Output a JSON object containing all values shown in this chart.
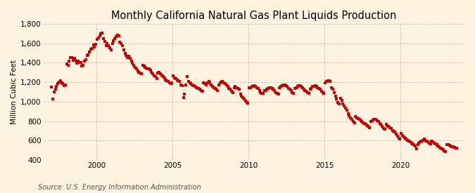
{
  "title": "Monthly California Natural Gas Plant Liquids Production",
  "ylabel": "Million Cubic Feet",
  "source": "Source: U.S. Energy Information Administration",
  "ylim": [
    400,
    1800
  ],
  "yticks": [
    400,
    600,
    800,
    1000,
    1200,
    1400,
    1600,
    1800
  ],
  "xlim_start": 1996.5,
  "xlim_end": 2024.2,
  "xticks": [
    2000,
    2005,
    2010,
    2015,
    2020
  ],
  "background_color": "#FDF3E0",
  "plot_bg_color": "#FDF3E0",
  "marker_color": "#CC0000",
  "marker_size": 7,
  "title_fontsize": 10.5,
  "label_fontsize": 7.5,
  "tick_fontsize": 7.5,
  "source_fontsize": 7,
  "grid_color": "#AAAAAA",
  "grid_style": "--",
  "grid_alpha": 0.6,
  "data_years": [
    1997,
    1997,
    1997,
    1997,
    1997,
    1997,
    1997,
    1997,
    1997,
    1997,
    1997,
    1997,
    1998,
    1998,
    1998,
    1998,
    1998,
    1998,
    1998,
    1998,
    1998,
    1998,
    1998,
    1998,
    1999,
    1999,
    1999,
    1999,
    1999,
    1999,
    1999,
    1999,
    1999,
    1999,
    1999,
    1999,
    2000,
    2000,
    2000,
    2000,
    2000,
    2000,
    2000,
    2000,
    2000,
    2000,
    2000,
    2000,
    2001,
    2001,
    2001,
    2001,
    2001,
    2001,
    2001,
    2001,
    2001,
    2001,
    2001,
    2001,
    2002,
    2002,
    2002,
    2002,
    2002,
    2002,
    2002,
    2002,
    2002,
    2002,
    2002,
    2002,
    2003,
    2003,
    2003,
    2003,
    2003,
    2003,
    2003,
    2003,
    2003,
    2003,
    2003,
    2003,
    2004,
    2004,
    2004,
    2004,
    2004,
    2004,
    2004,
    2004,
    2004,
    2004,
    2004,
    2004,
    2005,
    2005,
    2005,
    2005,
    2005,
    2005,
    2005,
    2005,
    2005,
    2005,
    2005,
    2005,
    2006,
    2006,
    2006,
    2006,
    2006,
    2006,
    2006,
    2006,
    2006,
    2006,
    2006,
    2006,
    2007,
    2007,
    2007,
    2007,
    2007,
    2007,
    2007,
    2007,
    2007,
    2007,
    2007,
    2007,
    2008,
    2008,
    2008,
    2008,
    2008,
    2008,
    2008,
    2008,
    2008,
    2008,
    2008,
    2008,
    2009,
    2009,
    2009,
    2009,
    2009,
    2009,
    2009,
    2009,
    2009,
    2009,
    2009,
    2009,
    2010,
    2010,
    2010,
    2010,
    2010,
    2010,
    2010,
    2010,
    2010,
    2010,
    2010,
    2010,
    2011,
    2011,
    2011,
    2011,
    2011,
    2011,
    2011,
    2011,
    2011,
    2011,
    2011,
    2011,
    2012,
    2012,
    2012,
    2012,
    2012,
    2012,
    2012,
    2012,
    2012,
    2012,
    2012,
    2012,
    2013,
    2013,
    2013,
    2013,
    2013,
    2013,
    2013,
    2013,
    2013,
    2013,
    2013,
    2013,
    2014,
    2014,
    2014,
    2014,
    2014,
    2014,
    2014,
    2014,
    2014,
    2014,
    2014,
    2014,
    2015,
    2015,
    2015,
    2015,
    2015,
    2015,
    2015,
    2015,
    2015,
    2015,
    2015,
    2015,
    2016,
    2016,
    2016,
    2016,
    2016,
    2016,
    2016,
    2016,
    2016,
    2016,
    2016,
    2016,
    2017,
    2017,
    2017,
    2017,
    2017,
    2017,
    2017,
    2017,
    2017,
    2017,
    2017,
    2017,
    2018,
    2018,
    2018,
    2018,
    2018,
    2018,
    2018,
    2018,
    2018,
    2018,
    2018,
    2018,
    2019,
    2019,
    2019,
    2019,
    2019,
    2019,
    2019,
    2019,
    2019,
    2019,
    2019,
    2019,
    2020,
    2020,
    2020,
    2020,
    2020,
    2020,
    2020,
    2020,
    2020,
    2020,
    2020,
    2020,
    2021,
    2021,
    2021,
    2021,
    2021,
    2021,
    2021,
    2021,
    2021,
    2021,
    2021,
    2021,
    2022,
    2022,
    2022,
    2022,
    2022,
    2022,
    2022,
    2022,
    2022,
    2022,
    2022,
    2022,
    2023,
    2023,
    2023,
    2023,
    2023,
    2023,
    2023,
    2023,
    2023
  ],
  "data_months": [
    1,
    2,
    3,
    4,
    5,
    6,
    7,
    8,
    9,
    10,
    11,
    12,
    1,
    2,
    3,
    4,
    5,
    6,
    7,
    8,
    9,
    10,
    11,
    12,
    1,
    2,
    3,
    4,
    5,
    6,
    7,
    8,
    9,
    10,
    11,
    12,
    1,
    2,
    3,
    4,
    5,
    6,
    7,
    8,
    9,
    10,
    11,
    12,
    1,
    2,
    3,
    4,
    5,
    6,
    7,
    8,
    9,
    10,
    11,
    12,
    1,
    2,
    3,
    4,
    5,
    6,
    7,
    8,
    9,
    10,
    11,
    12,
    1,
    2,
    3,
    4,
    5,
    6,
    7,
    8,
    9,
    10,
    11,
    12,
    1,
    2,
    3,
    4,
    5,
    6,
    7,
    8,
    9,
    10,
    11,
    12,
    1,
    2,
    3,
    4,
    5,
    6,
    7,
    8,
    9,
    10,
    11,
    12,
    1,
    2,
    3,
    4,
    5,
    6,
    7,
    8,
    9,
    10,
    11,
    12,
    1,
    2,
    3,
    4,
    5,
    6,
    7,
    8,
    9,
    10,
    11,
    12,
    1,
    2,
    3,
    4,
    5,
    6,
    7,
    8,
    9,
    10,
    11,
    12,
    1,
    2,
    3,
    4,
    5,
    6,
    7,
    8,
    9,
    10,
    11,
    12,
    1,
    2,
    3,
    4,
    5,
    6,
    7,
    8,
    9,
    10,
    11,
    12,
    1,
    2,
    3,
    4,
    5,
    6,
    7,
    8,
    9,
    10,
    11,
    12,
    1,
    2,
    3,
    4,
    5,
    6,
    7,
    8,
    9,
    10,
    11,
    12,
    1,
    2,
    3,
    4,
    5,
    6,
    7,
    8,
    9,
    10,
    11,
    12,
    1,
    2,
    3,
    4,
    5,
    6,
    7,
    8,
    9,
    10,
    11,
    12,
    1,
    2,
    3,
    4,
    5,
    6,
    7,
    8,
    9,
    10,
    11,
    12,
    1,
    2,
    3,
    4,
    5,
    6,
    7,
    8,
    9,
    10,
    11,
    12,
    1,
    2,
    3,
    4,
    5,
    6,
    7,
    8,
    9,
    10,
    11,
    12,
    1,
    2,
    3,
    4,
    5,
    6,
    7,
    8,
    9,
    10,
    11,
    12,
    1,
    2,
    3,
    4,
    5,
    6,
    7,
    8,
    9,
    10,
    11,
    12,
    1,
    2,
    3,
    4,
    5,
    6,
    7,
    8,
    9,
    10,
    11,
    12,
    1,
    2,
    3,
    4,
    5,
    6,
    7,
    8,
    9,
    10,
    11,
    12,
    1,
    2,
    3,
    4,
    5,
    6,
    7,
    8,
    9,
    10,
    11,
    12,
    1,
    2,
    3,
    4,
    5,
    6,
    7,
    8,
    9
  ],
  "data_values": [
    1150,
    1030,
    1100,
    1130,
    1160,
    1185,
    1200,
    1215,
    1195,
    1185,
    1165,
    1175,
    1385,
    1375,
    1415,
    1455,
    1455,
    1425,
    1445,
    1425,
    1395,
    1415,
    1405,
    1405,
    1365,
    1375,
    1415,
    1435,
    1475,
    1485,
    1510,
    1540,
    1550,
    1580,
    1565,
    1590,
    1640,
    1655,
    1680,
    1700,
    1705,
    1650,
    1620,
    1575,
    1595,
    1575,
    1555,
    1535,
    1600,
    1625,
    1650,
    1670,
    1685,
    1675,
    1615,
    1595,
    1575,
    1535,
    1495,
    1475,
    1455,
    1465,
    1445,
    1415,
    1395,
    1375,
    1355,
    1335,
    1315,
    1305,
    1295,
    1285,
    1375,
    1365,
    1355,
    1345,
    1335,
    1335,
    1325,
    1305,
    1285,
    1265,
    1255,
    1235,
    1295,
    1305,
    1285,
    1275,
    1255,
    1245,
    1225,
    1215,
    1205,
    1195,
    1185,
    1195,
    1265,
    1245,
    1235,
    1225,
    1215,
    1205,
    1175,
    1165,
    1045,
    1075,
    1175,
    1255,
    1205,
    1195,
    1185,
    1175,
    1165,
    1155,
    1145,
    1145,
    1135,
    1125,
    1115,
    1105,
    1195,
    1185,
    1175,
    1195,
    1205,
    1195,
    1175,
    1155,
    1145,
    1135,
    1125,
    1115,
    1175,
    1195,
    1205,
    1205,
    1195,
    1185,
    1175,
    1155,
    1135,
    1125,
    1105,
    1095,
    1145,
    1155,
    1145,
    1135,
    1125,
    1075,
    1055,
    1045,
    1025,
    1005,
    995,
    985,
    1145,
    1145,
    1155,
    1155,
    1165,
    1155,
    1145,
    1135,
    1115,
    1095,
    1085,
    1085,
    1115,
    1115,
    1125,
    1135,
    1145,
    1145,
    1135,
    1125,
    1115,
    1095,
    1085,
    1075,
    1145,
    1155,
    1165,
    1175,
    1175,
    1165,
    1155,
    1135,
    1125,
    1115,
    1095,
    1085,
    1135,
    1145,
    1155,
    1165,
    1165,
    1155,
    1145,
    1125,
    1115,
    1105,
    1095,
    1085,
    1125,
    1135,
    1155,
    1155,
    1165,
    1155,
    1145,
    1135,
    1125,
    1105,
    1095,
    1085,
    1195,
    1205,
    1215,
    1215,
    1205,
    1145,
    1125,
    1095,
    1055,
    1025,
    995,
    975,
    1035,
    1015,
    975,
    955,
    935,
    915,
    875,
    855,
    835,
    815,
    795,
    785,
    845,
    835,
    825,
    815,
    805,
    795,
    785,
    775,
    765,
    755,
    745,
    735,
    795,
    805,
    815,
    815,
    815,
    805,
    795,
    775,
    765,
    745,
    725,
    715,
    765,
    755,
    745,
    735,
    725,
    705,
    695,
    685,
    665,
    645,
    625,
    615,
    675,
    655,
    635,
    625,
    615,
    605,
    595,
    585,
    575,
    565,
    555,
    545,
    515,
    555,
    575,
    585,
    595,
    605,
    615,
    605,
    595,
    585,
    575,
    565,
    595,
    585,
    575,
    565,
    555,
    545,
    535,
    525,
    515,
    505,
    495,
    485,
    555,
    555,
    550,
    545,
    540,
    535,
    530,
    525,
    520
  ]
}
